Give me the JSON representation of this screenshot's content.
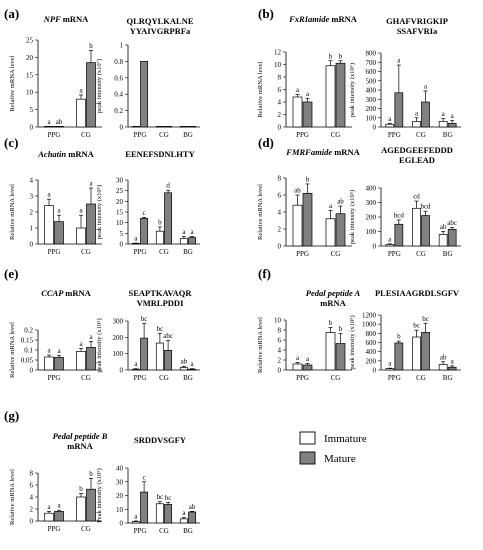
{
  "legend": {
    "immature": "Immature",
    "mature": "Mature",
    "colors": {
      "immature": "#ffffff",
      "mature": "#808080"
    }
  },
  "chart_data": [
    {
      "id": "a",
      "panel_label": "(a)",
      "gene": "NPF",
      "gene_suffix": "mRNA",
      "mrna": {
        "type": "bar",
        "ylabel": "Relative mRNA level",
        "ylim": [
          0,
          25
        ],
        "ticks": [
          0,
          5,
          10,
          15,
          20,
          25
        ],
        "categories": [
          "PPG",
          "CG"
        ],
        "series": [
          {
            "name": "Immature",
            "values": [
              0.1,
              8
            ],
            "err": [
              0,
              1.2
            ]
          },
          {
            "name": "Mature",
            "values": [
              0.1,
              18.5
            ],
            "err": [
              0,
              3.5
            ]
          }
        ],
        "letters": [
          [
            "a",
            "a"
          ],
          [
            "ab",
            "b"
          ]
        ]
      },
      "peptide": {
        "title": [
          "QLRQYLKALNE",
          "YYAIVGRPRFa"
        ],
        "type": "bar",
        "ylabel": "peak intensity (x10⁷)",
        "ylim": [
          0,
          1
        ],
        "ticks": [
          0,
          0.2,
          0.4,
          0.6,
          0.8,
          1
        ],
        "categories": [
          "PPG",
          "CG",
          "BG"
        ],
        "series": [
          {
            "name": "Immature",
            "values": [
              0,
              0,
              0
            ],
            "err": [
              0,
              0,
              0
            ]
          },
          {
            "name": "Mature",
            "values": [
              0.8,
              0,
              0
            ],
            "err": [
              0,
              0,
              0
            ]
          }
        ],
        "letters": []
      }
    },
    {
      "id": "b",
      "panel_label": "(b)",
      "gene": "FxRIamide",
      "gene_suffix": "mRNA",
      "mrna": {
        "type": "bar",
        "ylabel": "Relative mRNA level",
        "ylim": [
          0,
          12
        ],
        "ticks": [
          0,
          2,
          4,
          6,
          8,
          10,
          12
        ],
        "categories": [
          "PPG",
          "CG"
        ],
        "series": [
          {
            "name": "Immature",
            "values": [
              4.8,
              9.8
            ],
            "err": [
              0.4,
              0.8
            ]
          },
          {
            "name": "Mature",
            "values": [
              4,
              10.2
            ],
            "err": [
              0.6,
              0.4
            ]
          }
        ],
        "letters": [
          [
            "a",
            "b"
          ],
          [
            "a",
            "b"
          ]
        ]
      },
      "peptide": {
        "title": [
          "GHAFVRIGKIP",
          "SSAFVRIa"
        ],
        "type": "bar",
        "ylabel": "peak intensity (x10⁶)",
        "ylim": [
          0,
          800
        ],
        "ticks": [
          0,
          100,
          200,
          300,
          400,
          500,
          600,
          700,
          800
        ],
        "categories": [
          "PPG",
          "CG",
          "BG"
        ],
        "series": [
          {
            "name": "Immature",
            "values": [
              30,
              60,
              60
            ],
            "err": [
              10,
              40,
              30
            ]
          },
          {
            "name": "Mature",
            "values": [
              370,
              270,
              40
            ],
            "err": [
              300,
              120,
              30
            ]
          }
        ],
        "letters": [
          [
            "a",
            "a",
            "a"
          ],
          [
            "a",
            "a",
            "a"
          ]
        ]
      }
    },
    {
      "id": "c",
      "panel_label": "(c)",
      "gene": "Achatin",
      "gene_suffix": "mRNA",
      "mrna": {
        "type": "bar",
        "ylabel": "Relative mRNA level",
        "ylim": [
          0,
          4
        ],
        "ticks": [
          0,
          1,
          2,
          3,
          4
        ],
        "categories": [
          "PPG",
          "CG"
        ],
        "series": [
          {
            "name": "Immature",
            "values": [
              2.4,
              1
            ],
            "err": [
              0.4,
              0.8
            ]
          },
          {
            "name": "Mature",
            "values": [
              1.4,
              2.5
            ],
            "err": [
              0.4,
              1
            ]
          }
        ],
        "letters": [
          [
            "a",
            "a"
          ],
          [
            "a",
            "a"
          ]
        ]
      },
      "peptide": {
        "title": [
          "EENEFSDNLHTY"
        ],
        "type": "bar",
        "ylabel": "peak intensity (x10⁵)",
        "ylim": [
          0,
          30
        ],
        "ticks": [
          0,
          5,
          10,
          15,
          20,
          25,
          30
        ],
        "categories": [
          "PPG",
          "CG",
          "BG"
        ],
        "series": [
          {
            "name": "Immature",
            "values": [
              0.3,
              6,
              2.5
            ],
            "err": [
              0.1,
              2,
              1
            ]
          },
          {
            "name": "Mature",
            "values": [
              12,
              24,
              3
            ],
            "err": [
              0.5,
              1.2,
              0.5
            ]
          }
        ],
        "letters": [
          [
            "a",
            "b",
            "a"
          ],
          [
            "c",
            "d",
            "a"
          ]
        ]
      }
    },
    {
      "id": "d",
      "panel_label": "(d)",
      "gene": "FMRFamide",
      "gene_suffix": "mRNA",
      "mrna": {
        "type": "bar",
        "ylabel": "Relative mRNA level",
        "ylim": [
          0,
          8
        ],
        "ticks": [
          0,
          2,
          4,
          6,
          8
        ],
        "categories": [
          "PPG",
          "CG"
        ],
        "series": [
          {
            "name": "Immature",
            "values": [
              4.8,
              3.2
            ],
            "err": [
              1.2,
              1
            ]
          },
          {
            "name": "Mature",
            "values": [
              6.2,
              3.8
            ],
            "err": [
              1.1,
              0.9
            ]
          }
        ],
        "letters": [
          [
            "ab",
            "a"
          ],
          [
            "b",
            "ab"
          ]
        ]
      },
      "peptide": {
        "title": [
          "AGEDGEEFEDDD",
          "EGLEAD"
        ],
        "type": "bar",
        "ylabel": "peak intensity (x10⁵)",
        "ylim": [
          0,
          400
        ],
        "ticks": [
          0,
          100,
          200,
          300,
          400
        ],
        "categories": [
          "PPG",
          "CG",
          "BG"
        ],
        "series": [
          {
            "name": "Immature",
            "values": [
              10,
              260,
              80
            ],
            "err": [
              5,
              50,
              20
            ]
          },
          {
            "name": "Mature",
            "values": [
              150,
              210,
              115
            ],
            "err": [
              30,
              30,
              12
            ]
          }
        ],
        "letters": [
          [
            "a",
            "cd",
            "ab"
          ],
          [
            "bcd",
            "bcd",
            "abc"
          ]
        ]
      }
    },
    {
      "id": "e",
      "panel_label": "(e)",
      "gene": "CCAP",
      "gene_suffix": "mRNA",
      "mrna": {
        "type": "bar",
        "ylabel": "Relative mRNA level",
        "ylim": [
          0,
          0.2
        ],
        "ticks": [
          0,
          0.05,
          0.1,
          0.15,
          0.2
        ],
        "categories": [
          "PPG",
          "CG"
        ],
        "series": [
          {
            "name": "Immature",
            "values": [
              0.065,
              0.093
            ],
            "err": [
              0.01,
              0.015
            ]
          },
          {
            "name": "Mature",
            "values": [
              0.063,
              0.113
            ],
            "err": [
              0.01,
              0.03
            ]
          }
        ],
        "letters": [
          [
            "a",
            "a"
          ],
          [
            "a",
            "a"
          ]
        ]
      },
      "peptide": {
        "title": [
          "SEAPTKAVAQR",
          "VMRLPDDI"
        ],
        "type": "bar",
        "ylabel": "peak intensity (x10⁵)",
        "ylim": [
          0,
          300
        ],
        "ticks": [
          0,
          100,
          200,
          300
        ],
        "categories": [
          "PPG",
          "CG",
          "BG"
        ],
        "series": [
          {
            "name": "Immature",
            "values": [
              5,
              165,
              15
            ],
            "err": [
              3,
              60,
              8
            ]
          },
          {
            "name": "Mature",
            "values": [
              195,
              120,
              5
            ],
            "err": [
              90,
              60,
              3
            ]
          }
        ],
        "letters": [
          [
            "a",
            "bc",
            "ab"
          ],
          [
            "bc",
            "abc",
            "a"
          ]
        ]
      }
    },
    {
      "id": "f",
      "panel_label": "(f)",
      "gene": "Pedal peptide A",
      "gene_suffix": "mRNA",
      "mrna": {
        "type": "bar",
        "ylabel": "Relative mRNA level",
        "ylim": [
          0,
          10
        ],
        "ticks": [
          0,
          2,
          4,
          6,
          8,
          10
        ],
        "categories": [
          "PPG",
          "CG"
        ],
        "series": [
          {
            "name": "Immature",
            "values": [
              1.2,
              7.5
            ],
            "err": [
              0.3,
              1
            ]
          },
          {
            "name": "Mature",
            "values": [
              1,
              5.3
            ],
            "err": [
              0.3,
              2
            ]
          }
        ],
        "letters": [
          [
            "a",
            "b"
          ],
          [
            "a",
            "b"
          ]
        ]
      },
      "peptide": {
        "title": [
          "PLESIAAGRDLSGFV"
        ],
        "type": "bar",
        "ylabel": "peak intensity (x10⁵)",
        "ylim": [
          0,
          1200
        ],
        "ticks": [
          0,
          200,
          400,
          600,
          800,
          1000,
          1200
        ],
        "categories": [
          "PPG",
          "CG",
          "BG"
        ],
        "series": [
          {
            "name": "Immature",
            "values": [
              30,
              720,
              120
            ],
            "err": [
              10,
              150,
              60
            ]
          },
          {
            "name": "Mature",
            "values": [
              590,
              820,
              60
            ],
            "err": [
              40,
              200,
              30
            ]
          }
        ],
        "letters": [
          [
            "a",
            "bc",
            "ab"
          ],
          [
            "b",
            "bc",
            "a"
          ]
        ]
      }
    },
    {
      "id": "g",
      "panel_label": "(g)",
      "gene": "Pedal peptide B",
      "gene_suffix": "mRNA",
      "mrna": {
        "type": "bar",
        "ylabel": "Relative mRNA level",
        "ylim": [
          0,
          8
        ],
        "ticks": [
          0,
          2,
          4,
          6,
          8
        ],
        "categories": [
          "PPG",
          "CG"
        ],
        "series": [
          {
            "name": "Immature",
            "values": [
              1.3,
              4
            ],
            "err": [
              0.3,
              0.6
            ]
          },
          {
            "name": "Mature",
            "values": [
              1.6,
              5.3
            ],
            "err": [
              0.2,
              1.8
            ]
          }
        ],
        "letters": [
          [
            "a",
            "b"
          ],
          [
            "a",
            "b"
          ]
        ]
      },
      "peptide": {
        "title": [
          "SRDDVSGFY"
        ],
        "type": "bar",
        "ylabel": "Peak intensity (x10⁵)",
        "ylim": [
          0,
          40
        ],
        "ticks": [
          0,
          10,
          20,
          30,
          40
        ],
        "categories": [
          "PPG",
          "CG",
          "BG"
        ],
        "series": [
          {
            "name": "Immature",
            "values": [
              1,
              14,
              3
            ],
            "err": [
              0.5,
              1.5,
              1
            ]
          },
          {
            "name": "Mature",
            "values": [
              22.5,
              13.5,
              8
            ],
            "err": [
              7.5,
              1.5,
              0.5
            ]
          }
        ],
        "letters": [
          [
            "a",
            "bc",
            "a"
          ],
          [
            "c",
            "bc",
            "ab"
          ]
        ]
      }
    }
  ]
}
